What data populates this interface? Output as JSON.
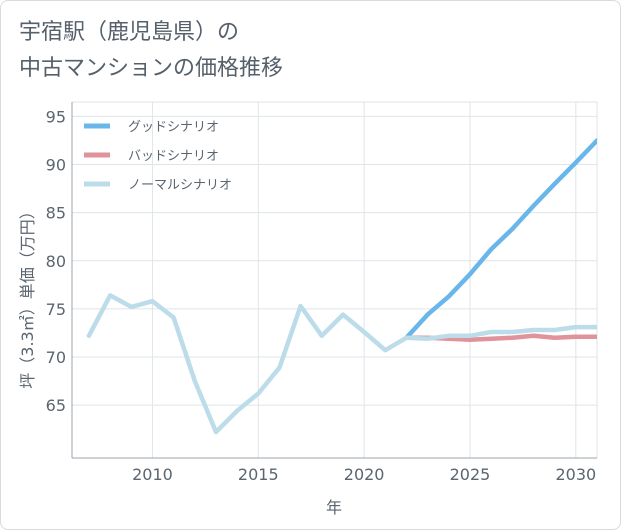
{
  "chart_data": {
    "type": "line",
    "title_line1": "宇宿駅（鹿児島県）の",
    "title_line2": "中古マンションの価格推移",
    "xlabel": "年",
    "ylabel": "坪（3.3㎡）単価（万円）",
    "xlim": [
      2006.2,
      2031
    ],
    "ylim": [
      59.5,
      96.5
    ],
    "xticks": [
      2010,
      2015,
      2020,
      2025,
      2030
    ],
    "yticks": [
      65,
      70,
      75,
      80,
      85,
      90,
      95
    ],
    "colors": {
      "good": "#69b6ea",
      "bad": "#e0939b",
      "normal": "#bcdce9",
      "grid": "#dfe4e8",
      "axis": "#9aa4ad"
    },
    "series": [
      {
        "key": "good",
        "name": "グッドシナリオ",
        "x": [
          2022,
          2023,
          2024,
          2025,
          2026,
          2027,
          2028,
          2029,
          2030,
          2031
        ],
        "values": [
          72.0,
          74.4,
          76.3,
          78.6,
          81.2,
          83.3,
          85.7,
          88.0,
          90.2,
          92.5
        ]
      },
      {
        "key": "bad",
        "name": "バッドシナリオ",
        "x": [
          2022,
          2023,
          2024,
          2025,
          2026,
          2027,
          2028,
          2029,
          2030,
          2031
        ],
        "values": [
          72.0,
          72.0,
          71.9,
          71.8,
          71.9,
          72.0,
          72.2,
          72.0,
          72.1,
          72.1
        ]
      },
      {
        "key": "normal",
        "name": "ノーマルシナリオ",
        "x": [
          2007,
          2008,
          2009,
          2010,
          2011,
          2012,
          2013,
          2014,
          2015,
          2016,
          2017,
          2018,
          2019,
          2020,
          2021,
          2022,
          2023,
          2024,
          2025,
          2026,
          2027,
          2028,
          2029,
          2030,
          2031
        ],
        "values": [
          72.2,
          76.4,
          75.2,
          75.8,
          74.1,
          67.5,
          62.2,
          64.4,
          66.2,
          68.9,
          75.3,
          72.2,
          74.4,
          72.6,
          70.7,
          72.0,
          71.9,
          72.2,
          72.2,
          72.6,
          72.6,
          72.8,
          72.8,
          73.1,
          73.1
        ]
      }
    ]
  }
}
